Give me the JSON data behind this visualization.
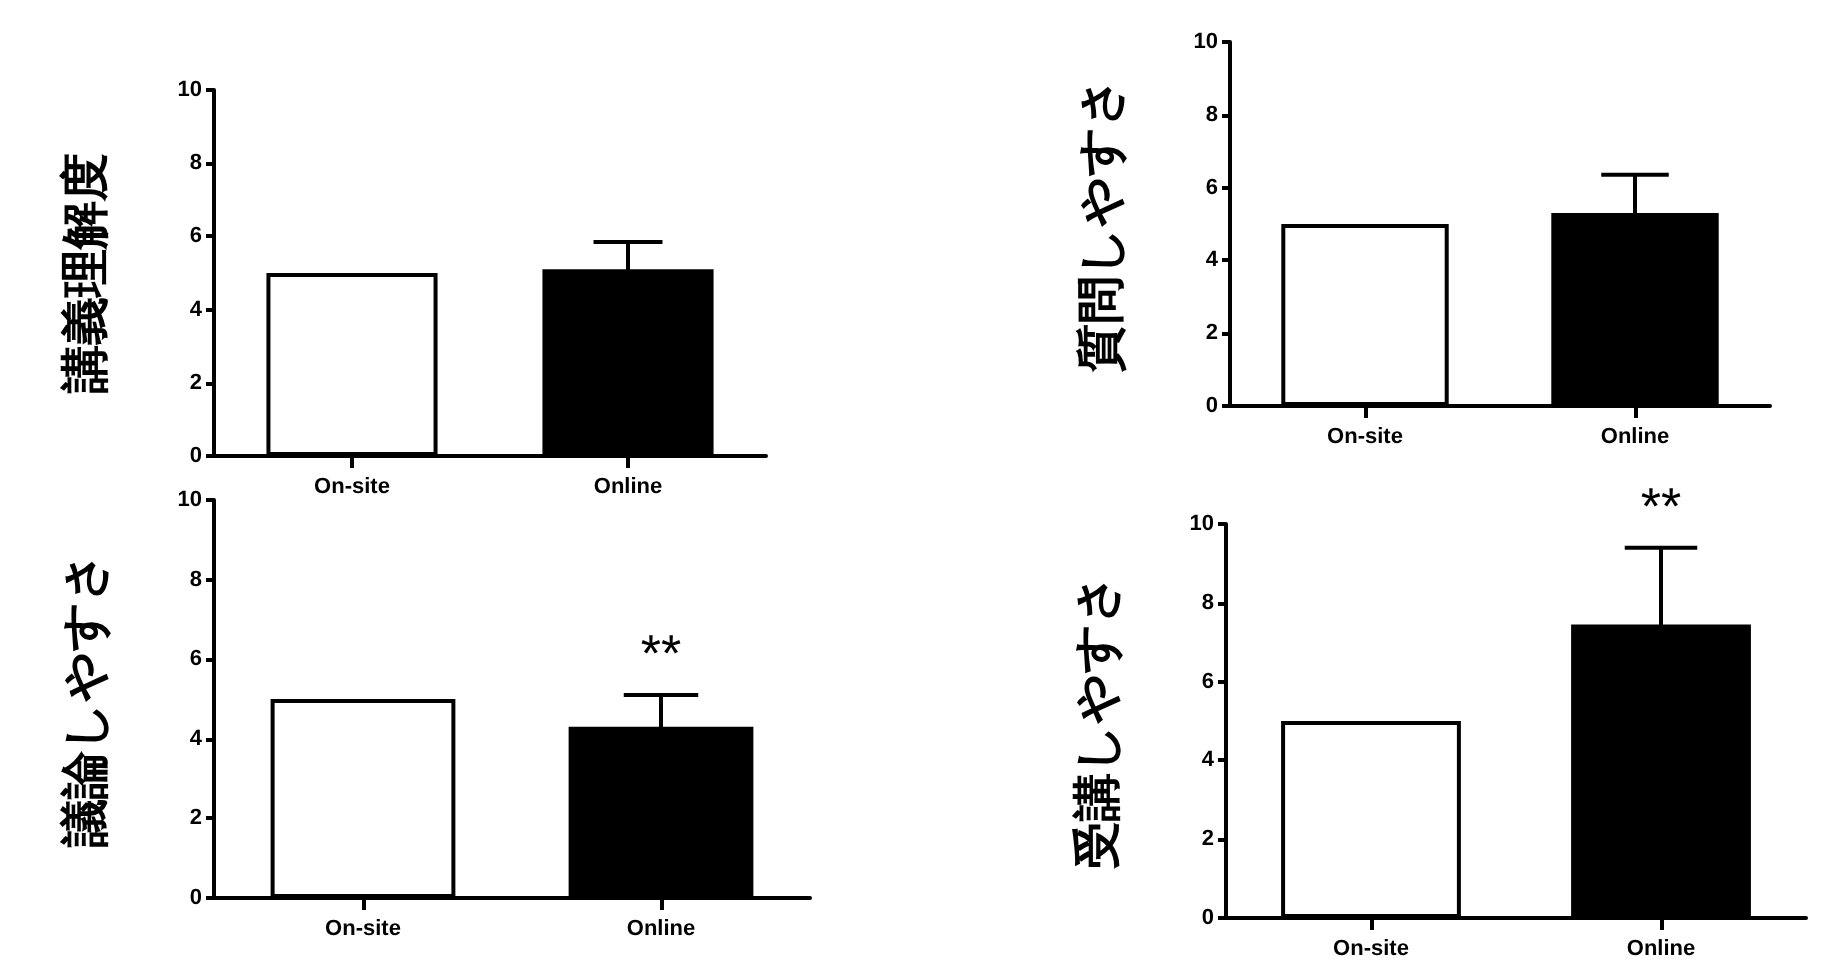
{
  "chart_data": [
    {
      "type": "bar",
      "ylabel": "講義理解度",
      "categories": [
        "On-site",
        "Online"
      ],
      "values": [
        5,
        5.1
      ],
      "colors": [
        "#ffffff",
        "#000000"
      ],
      "errors": [
        null,
        0.75
      ],
      "ylim": [
        0,
        10
      ],
      "yticks": [
        0,
        2,
        4,
        6,
        8,
        10
      ]
    },
    {
      "type": "bar",
      "ylabel": "質問しやすさ",
      "categories": [
        "On-site",
        "Online"
      ],
      "values": [
        5,
        5.3
      ],
      "colors": [
        "#ffffff",
        "#000000"
      ],
      "errors": [
        null,
        1.05
      ],
      "ylim": [
        0,
        10
      ],
      "yticks": [
        0,
        2,
        4,
        6,
        8,
        10
      ]
    },
    {
      "type": "bar",
      "ylabel": "議論しやすさ",
      "categories": [
        "On-site",
        "Online"
      ],
      "values": [
        5,
        4.3
      ],
      "colors": [
        "#ffffff",
        "#000000"
      ],
      "errors": [
        null,
        0.8
      ],
      "ylim": [
        0,
        10
      ],
      "yticks": [
        0,
        2,
        4,
        6,
        8,
        10
      ],
      "annotations": [
        "**"
      ]
    },
    {
      "type": "bar",
      "ylabel": "受講しやすさ",
      "categories": [
        "On-site",
        "Online"
      ],
      "values": [
        5,
        7.45
      ],
      "colors": [
        "#ffffff",
        "#000000"
      ],
      "errors": [
        null,
        1.95
      ],
      "ylim": [
        0,
        10
      ],
      "yticks": [
        0,
        2,
        4,
        6,
        8,
        10
      ],
      "annotations": [
        "**"
      ]
    }
  ]
}
